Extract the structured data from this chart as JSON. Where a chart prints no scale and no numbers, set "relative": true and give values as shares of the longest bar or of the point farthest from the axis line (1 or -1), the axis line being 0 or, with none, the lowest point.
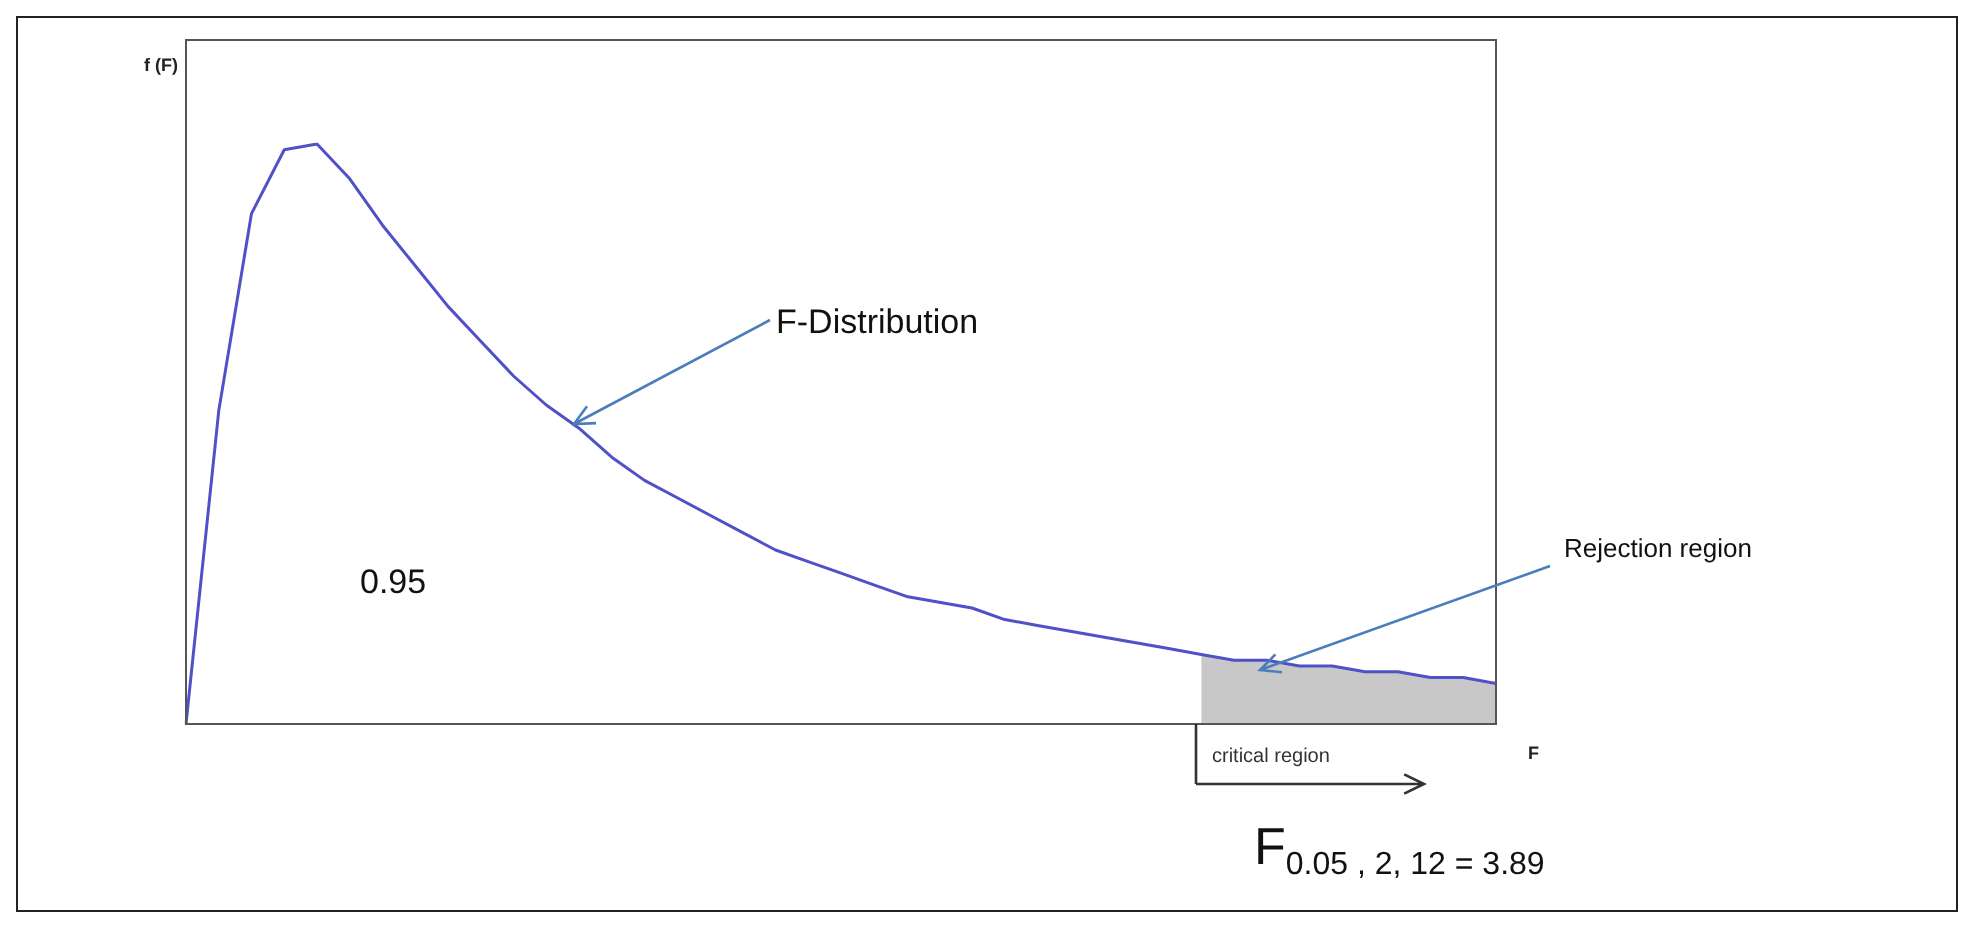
{
  "chart_data": {
    "type": "line",
    "relative": true,
    "xlabel": "F",
    "ylabel": "f (F)",
    "marker": "none",
    "categories": [
      null,
      null,
      null,
      null,
      null,
      null,
      null,
      null,
      null,
      null,
      null,
      null,
      null,
      null,
      null,
      null,
      null,
      null,
      null,
      null,
      null,
      null,
      null,
      null,
      null,
      null,
      null,
      null,
      null,
      null,
      null,
      null,
      null,
      null,
      null,
      null,
      null,
      null,
      null,
      null,
      null
    ],
    "series": [
      {
        "color": "#5050c8",
        "values": [
          0,
          0.54,
          0.88,
          0.99,
          1,
          0.94,
          0.86,
          0.79,
          0.72,
          0.66,
          0.6,
          0.55,
          0.51,
          0.46,
          0.42,
          0.39,
          0.36,
          0.33,
          0.3,
          0.28,
          0.26,
          0.24,
          0.22,
          0.21,
          0.2,
          0.18,
          0.17,
          0.16,
          0.15,
          0.14,
          0.13,
          0.12,
          0.11,
          0.11,
          0.1,
          0.1,
          0.09,
          0.09,
          0.08,
          0.08,
          0.07
        ]
      },
      {
        "type": "area",
        "color": "#c8c8c8",
        "values": [
          null,
          null,
          null,
          null,
          null,
          null,
          null,
          null,
          null,
          null,
          null,
          null,
          null,
          null,
          null,
          null,
          null,
          null,
          null,
          null,
          null,
          null,
          null,
          null,
          null,
          null,
          null,
          null,
          null,
          null,
          null,
          0.12,
          0.11,
          0.11,
          0.1,
          0.1,
          0.09,
          0.09,
          0.08,
          0.08,
          0.07
        ]
      }
    ],
    "annotations": [
      "F-Distribution",
      "0.95",
      "Rejection region",
      "critical region",
      "F$_{0.05 , 2, 12 = 3.89}$"
    ],
    "legend": false
  }
}
